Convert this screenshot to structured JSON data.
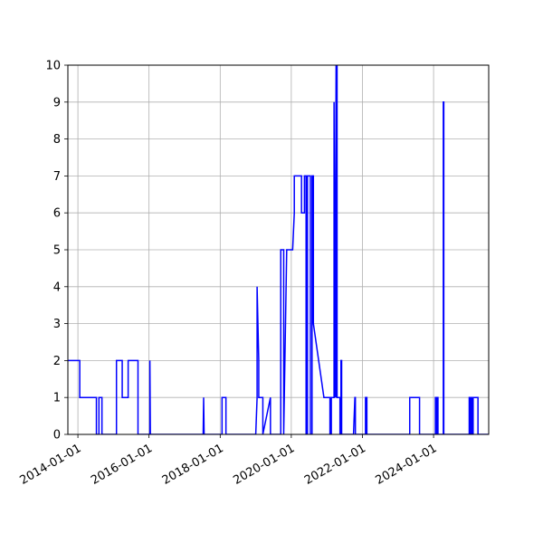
{
  "chart_data": {
    "type": "line",
    "title": "",
    "xlabel": "",
    "ylabel": "",
    "grid": true,
    "line_color": "#0000ff",
    "x_axis_type": "date",
    "xlim": [
      "2013-09-20",
      "2025-07-20"
    ],
    "ylim": [
      0,
      10
    ],
    "x_ticks": [
      "2014-01-01",
      "2016-01-01",
      "2018-01-01",
      "2020-01-01",
      "2022-01-01",
      "2024-01-01"
    ],
    "y_ticks": [
      0,
      1,
      2,
      3,
      4,
      5,
      6,
      7,
      8,
      9,
      10
    ],
    "series": [
      {
        "x": [
          "2013-09-20",
          "2014-01-20",
          "2014-01-20",
          "2014-07-10",
          "2014-07-10",
          "2014-08-05",
          "2014-08-05",
          "2014-09-05",
          "2014-09-05",
          "2015-02-01",
          "2015-02-01",
          "2015-04-01",
          "2015-04-01",
          "2015-06-01",
          "2015-06-01",
          "2015-09-10",
          "2015-09-10",
          "2016-01-01",
          "2016-01-10",
          "2016-01-10",
          "2016-01-15",
          "2016-01-20",
          "2017-07-10",
          "2017-07-15",
          "2017-07-20",
          "2018-01-01",
          "2018-01-20",
          "2018-01-20",
          "2018-03-01",
          "2018-03-01",
          "2019-01-01",
          "2019-01-15",
          "2019-01-15",
          "2019-02-01",
          "2019-02-01",
          "2019-03-15",
          "2019-03-15",
          "2019-06-01",
          "2019-06-01",
          "2019-09-15",
          "2019-09-15",
          "2019-10-15",
          "2019-10-15",
          "2019-11-15",
          "2019-11-15",
          "2020-01-15",
          "2020-02-01",
          "2020-02-01",
          "2020-04-01",
          "2020-04-15",
          "2020-04-15",
          "2020-05-15",
          "2020-05-15",
          "2020-06-01",
          "2020-06-01",
          "2020-06-15",
          "2020-06-15",
          "2020-07-15",
          "2020-07-15",
          "2020-08-01",
          "2020-08-01",
          "2020-08-15",
          "2020-08-15",
          "2020-12-01",
          "2020-12-15",
          "2020-12-15",
          "2021-02-01",
          "2021-02-01",
          "2021-02-15",
          "2021-02-15",
          "2021-03-15",
          "2021-03-15",
          "2021-03-25",
          "2021-03-25",
          "2021-04-05",
          "2021-04-05",
          "2021-04-15",
          "2021-04-15",
          "2021-04-20",
          "2021-04-20",
          "2021-05-15",
          "2021-05-15",
          "2021-05-25",
          "2021-05-25",
          "2021-06-01",
          "2021-06-01",
          "2021-06-10",
          "2021-06-10",
          "2021-10-01",
          "2021-10-15",
          "2021-10-20",
          "2021-10-20",
          "2022-02-01",
          "2022-02-01",
          "2022-02-15",
          "2022-02-15",
          "2023-05-01",
          "2023-05-01",
          "2023-08-10",
          "2023-08-10",
          "2024-01-20",
          "2024-01-20",
          "2024-02-01",
          "2024-02-01",
          "2024-02-05",
          "2024-02-05",
          "2024-02-15",
          "2024-02-15",
          "2024-04-10",
          "2024-04-10",
          "2024-04-15",
          "2024-04-15",
          "2025-01-01",
          "2025-01-01",
          "2025-01-15",
          "2025-01-15",
          "2025-01-25",
          "2025-01-25",
          "2025-02-01",
          "2025-02-01",
          "2025-02-10",
          "2025-02-10",
          "2025-04-01",
          "2025-04-01",
          "2025-07-20"
        ],
        "y": [
          2,
          2,
          1,
          1,
          0,
          0,
          1,
          1,
          0,
          0,
          2,
          2,
          1,
          1,
          2,
          2,
          0,
          0,
          0,
          2,
          0,
          0,
          0,
          1,
          0,
          0,
          0,
          1,
          1,
          0,
          0,
          1,
          4,
          2,
          1,
          1,
          0,
          1,
          0,
          0,
          5,
          5,
          0,
          5,
          5,
          5,
          6,
          7,
          7,
          7,
          6,
          6,
          7,
          7,
          0,
          0,
          7,
          7,
          0,
          0,
          7,
          7,
          3,
          1,
          1,
          1,
          1,
          0,
          0,
          1,
          1,
          9,
          2,
          1,
          10,
          1,
          10,
          1,
          1,
          1,
          1,
          0,
          0,
          2,
          2,
          0,
          0,
          0,
          0,
          1,
          1,
          0,
          0,
          1,
          1,
          0,
          0,
          1,
          1,
          0,
          0,
          1,
          1,
          0,
          0,
          1,
          1,
          0,
          0,
          9,
          9,
          0,
          0,
          1,
          1,
          0,
          0,
          1,
          1,
          0,
          0,
          1,
          1,
          0,
          0
        ]
      }
    ]
  }
}
